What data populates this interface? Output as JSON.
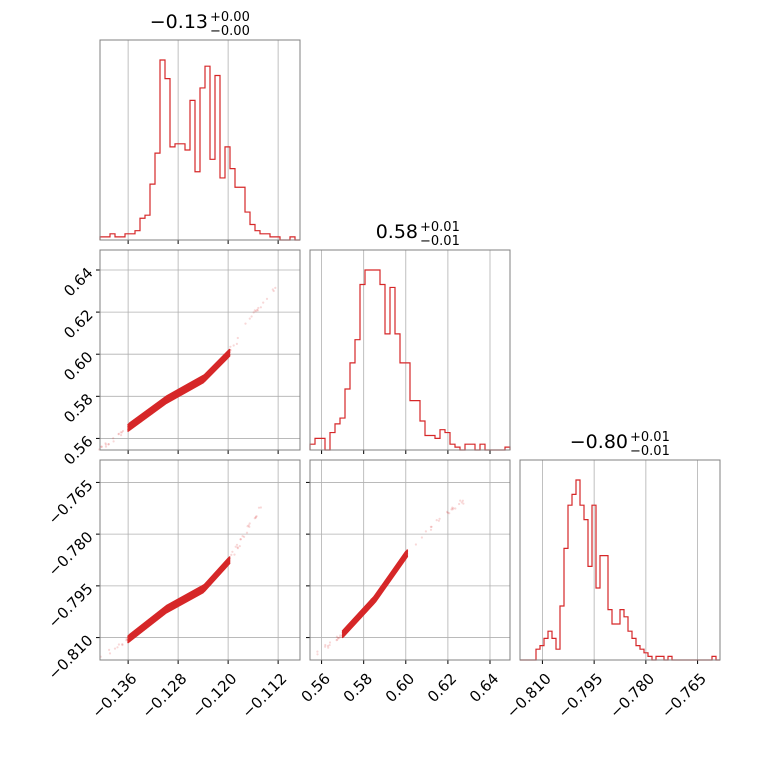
{
  "colors": {
    "accent": "#d62728",
    "frame": "#808080",
    "grid": "#b0b0b0"
  },
  "chart_data": {
    "type": "corner",
    "parameters": [
      {
        "title": {
          "value": "−0.13",
          "plus": "+0.00",
          "minus": "−0.00"
        },
        "range": [
          -0.1405,
          -0.1085
        ],
        "ticks": [
          "−0.136",
          "−0.128",
          "−0.120",
          "−0.112"
        ],
        "tick_values": [
          -0.136,
          -0.128,
          -0.12,
          -0.112
        ]
      },
      {
        "title": {
          "value": "0.58",
          "plus": "+0.01",
          "minus": "−0.01"
        },
        "range": [
          0.5545,
          0.6495
        ],
        "ticks": [
          "0.56",
          "0.58",
          "0.60",
          "0.62",
          "0.64"
        ],
        "tick_values": [
          0.56,
          0.58,
          0.6,
          0.62,
          0.64
        ]
      },
      {
        "title": {
          "value": "−0.80",
          "plus": "+0.01",
          "minus": "−0.01"
        },
        "range": [
          -0.8165,
          -0.7585
        ],
        "ticks": [
          "−0.810",
          "−0.795",
          "−0.780",
          "−0.765"
        ],
        "tick_values": [
          -0.81,
          -0.795,
          -0.78,
          -0.765
        ]
      }
    ],
    "histograms": [
      {
        "param": 0,
        "counts": [
          1,
          1,
          2,
          1,
          1,
          2,
          2,
          3,
          7,
          8,
          18,
          28,
          58,
          52,
          30,
          31,
          31,
          29,
          45,
          22,
          49,
          56,
          26,
          53,
          20,
          30,
          23,
          17,
          17,
          9,
          5,
          3,
          2,
          2,
          1,
          1,
          0,
          0,
          1,
          0
        ]
      },
      {
        "param": 1,
        "counts": [
          2,
          4,
          4,
          0,
          6,
          9,
          11,
          21,
          30,
          38,
          57,
          62,
          62,
          62,
          57,
          40,
          56,
          40,
          30,
          30,
          17,
          17,
          10,
          5,
          5,
          4,
          7,
          6,
          2,
          1,
          0,
          2,
          2,
          0,
          2,
          0,
          0,
          0,
          0,
          1
        ]
      },
      {
        "param": 2,
        "counts": [
          0,
          0,
          0,
          0,
          3,
          4,
          6,
          8,
          6,
          3,
          15,
          31,
          43,
          46,
          50,
          43,
          39,
          26,
          43,
          20,
          29,
          29,
          14,
          10,
          10,
          14,
          12,
          8,
          6,
          4,
          3,
          2,
          1,
          0,
          1,
          1,
          0,
          1,
          0,
          0,
          0,
          0,
          0,
          0,
          0,
          0,
          0,
          0,
          1,
          0
        ]
      }
    ],
    "scatter_pairs": [
      {
        "x_param": 0,
        "y_param": 1,
        "trend": [
          [
            -0.1405,
            0.5545
          ],
          [
            -0.136,
            0.565
          ],
          [
            -0.13,
            0.578
          ],
          [
            -0.124,
            0.588
          ],
          [
            -0.12,
            0.6
          ],
          [
            -0.116,
            0.619
          ],
          [
            -0.112,
            0.633
          ]
        ]
      },
      {
        "x_param": 0,
        "y_param": 2,
        "trend": [
          [
            -0.1405,
            -0.816
          ],
          [
            -0.136,
            -0.8105
          ],
          [
            -0.13,
            -0.802
          ],
          [
            -0.124,
            -0.796
          ],
          [
            -0.12,
            -0.788
          ],
          [
            -0.116,
            -0.776
          ],
          [
            -0.114,
            -0.769
          ]
        ]
      },
      {
        "x_param": 1,
        "y_param": 2,
        "trend": [
          [
            0.5545,
            -0.816
          ],
          [
            0.57,
            -0.809
          ],
          [
            0.585,
            -0.799
          ],
          [
            0.6,
            -0.786
          ],
          [
            0.615,
            -0.776
          ],
          [
            0.628,
            -0.77
          ]
        ]
      }
    ],
    "grid": true,
    "legend": "none"
  }
}
